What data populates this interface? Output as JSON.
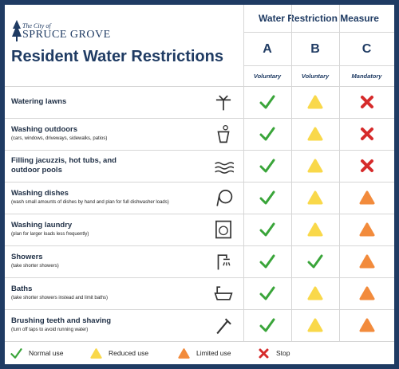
{
  "header": {
    "logo_small": "The City of",
    "logo_name": "SPRUCE GROVE",
    "title": "Resident Water Restrictions"
  },
  "measure": {
    "title": "Water Restriction Measure",
    "columns": [
      {
        "letter": "A",
        "type": "Voluntary"
      },
      {
        "letter": "B",
        "type": "Voluntary"
      },
      {
        "letter": "C",
        "type": "Mandatory"
      }
    ]
  },
  "rows": [
    {
      "name": "Watering lawns",
      "levels": [
        "check",
        "yellow",
        "cross"
      ]
    },
    {
      "name": "Washing outdoors",
      "note": "(cars, windows, driveways, sidewalks, patios)",
      "levels": [
        "check",
        "yellow",
        "cross"
      ]
    },
    {
      "name": "Filling jacuzzis, hot tubs, and outdoor pools",
      "levels": [
        "check",
        "yellow",
        "cross"
      ]
    },
    {
      "name": "Washing dishes",
      "note": "(wash small amounts of dishes by hand and plan for full dishwasher loads)",
      "levels": [
        "check",
        "yellow",
        "orange"
      ]
    },
    {
      "name": "Washing laundry",
      "note": "(plan for larger loads less frequently)",
      "levels": [
        "check",
        "yellow",
        "orange"
      ]
    },
    {
      "name": "Showers",
      "note": "(take shorter showers)",
      "levels": [
        "check",
        "check",
        "orange"
      ]
    },
    {
      "name": "Baths",
      "note": "(take shorter showers instead and limit baths)",
      "levels": [
        "check",
        "yellow",
        "orange"
      ]
    },
    {
      "name": "Brushing teeth and shaving",
      "note": "(turn off taps to avoid running water)",
      "levels": [
        "check",
        "yellow",
        "orange"
      ]
    }
  ],
  "legend": [
    {
      "icon": "check",
      "label": "Normal use"
    },
    {
      "icon": "yellow",
      "label": "Reduced use"
    },
    {
      "icon": "orange",
      "label": "Limited use"
    },
    {
      "icon": "cross",
      "label": "Stop"
    }
  ]
}
